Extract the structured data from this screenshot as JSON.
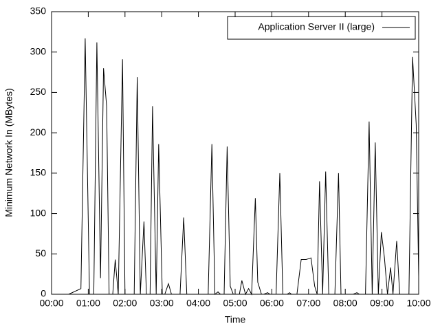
{
  "chart_data": {
    "type": "line",
    "xlabel": "Time",
    "ylabel": "Minimum Network In (MBytes)",
    "x": [
      28,
      48,
      55,
      62,
      69,
      74,
      80,
      85,
      90,
      94,
      100,
      104,
      109,
      116,
      120,
      135,
      140,
      145,
      151,
      155,
      161,
      165,
      171,
      175,
      181,
      185,
      191,
      196,
      210,
      216,
      221,
      256,
      262,
      267,
      272,
      276,
      282,
      287,
      292,
      297,
      307,
      311,
      317,
      322,
      327,
      333,
      337,
      343,
      347,
      353,
      357,
      367,
      373,
      378,
      385,
      389,
      392,
      401,
      408,
      416,
      424,
      430,
      434,
      438,
      443,
      448,
      453,
      463,
      469,
      473,
      493,
      499,
      503,
      513,
      519,
      524,
      529,
      534,
      539,
      544,
      549,
      554,
      558,
      564,
      569,
      584,
      590,
      596,
      600
    ],
    "series": [
      {
        "name": "Application Server II (large)",
        "color": "#000000",
        "values": [
          0,
          7,
          317,
          0,
          0,
          312,
          20,
          280,
          233,
          0,
          0,
          43,
          0,
          291,
          0,
          0,
          269,
          0,
          90,
          0,
          0,
          233,
          0,
          186,
          0,
          0,
          13,
          0,
          0,
          95,
          0,
          0,
          186,
          0,
          3,
          0,
          0,
          183,
          10,
          0,
          0,
          17,
          0,
          7,
          0,
          119,
          15,
          0,
          0,
          2,
          0,
          0,
          150,
          0,
          0,
          2,
          0,
          0,
          43,
          43,
          45,
          10,
          0,
          140,
          0,
          152,
          0,
          0,
          150,
          0,
          0,
          2,
          0,
          0,
          214,
          0,
          188,
          0,
          77,
          45,
          0,
          33,
          0,
          66,
          0,
          0,
          294,
          210,
          22
        ]
      }
    ],
    "xlim": [
      0,
      600
    ],
    "xticks": [
      {
        "value": 0,
        "label": "00:00"
      },
      {
        "value": 60,
        "label": "01:00"
      },
      {
        "value": 120,
        "label": "02:00"
      },
      {
        "value": 180,
        "label": "03:00"
      },
      {
        "value": 240,
        "label": "04:00"
      },
      {
        "value": 300,
        "label": "05:00"
      },
      {
        "value": 360,
        "label": "06:00"
      },
      {
        "value": 420,
        "label": "07:00"
      },
      {
        "value": 480,
        "label": "08:00"
      },
      {
        "value": 540,
        "label": "09:00"
      },
      {
        "value": 600,
        "label": "10:00"
      }
    ],
    "ylim": [
      0,
      350
    ],
    "yticks": [
      0,
      50,
      100,
      150,
      200,
      250,
      300,
      350
    ],
    "legend": "top-right"
  }
}
